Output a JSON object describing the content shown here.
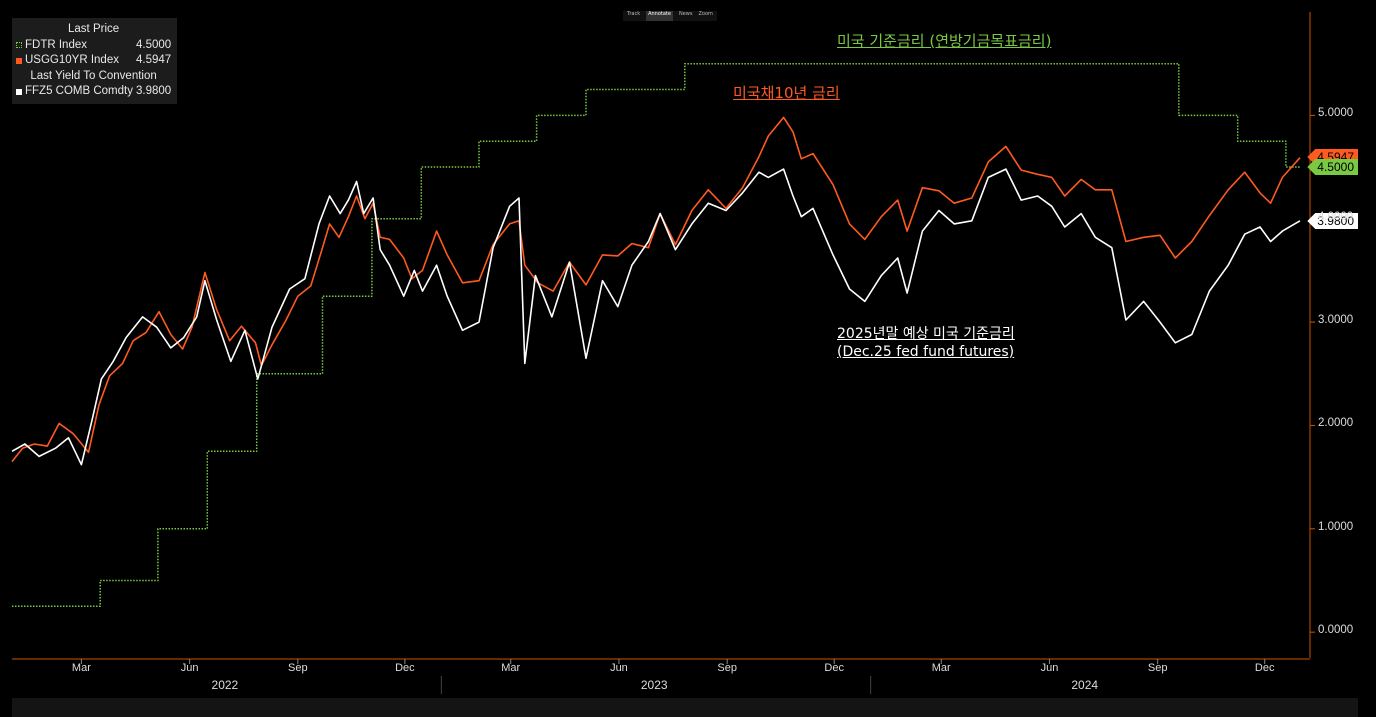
{
  "legend": {
    "header1": "Last Price",
    "items": [
      {
        "label": "FDTR Index",
        "value": "4.5000",
        "color": "#7ac943"
      },
      {
        "label": "USGG10YR Index",
        "value": "4.5947",
        "color": "#ff5a1f"
      }
    ],
    "header2": "Last Yield To Convention",
    "items2": [
      {
        "label": "FFZ5 COMB Comdty",
        "value": "3.9800",
        "color": "#ffffff"
      }
    ]
  },
  "toolbar": [
    "Track",
    "Annotate",
    "News",
    "Zoom"
  ],
  "annotations": {
    "fed_rate": "미국 기준금리 (연방기금목표금리)",
    "ust10": "미국채10년 금리",
    "ffz5_line1": "2025년말 예상 미국 기준금리",
    "ffz5_line2": "(Dec.25 fed fund futures)"
  },
  "last_labels": {
    "ust10": "4.5947",
    "fdtr": "4.5000",
    "ffz5": "3.9800"
  },
  "colors": {
    "fdtr": "#7ac943",
    "ust10": "#ff5a1f",
    "ffz5": "#ffffff",
    "axis": "#cc5500"
  },
  "chart_data": {
    "type": "line",
    "yticks": [
      "0.0000",
      "1.0000",
      "2.0000",
      "3.0000",
      "4.0000",
      "5.0000"
    ],
    "ylim": [
      -0.25,
      6.0
    ],
    "xlim": [
      "2022-01-01",
      "2024-12-31"
    ],
    "xticks": [
      {
        "label": "Mar",
        "date": "2022-03-01"
      },
      {
        "label": "Jun",
        "date": "2022-06-01"
      },
      {
        "label": "Sep",
        "date": "2022-09-01"
      },
      {
        "label": "Dec",
        "date": "2022-12-01"
      },
      {
        "label": "Mar",
        "date": "2023-03-01"
      },
      {
        "label": "Jun",
        "date": "2023-06-01"
      },
      {
        "label": "Sep",
        "date": "2023-09-01"
      },
      {
        "label": "Dec",
        "date": "2023-12-01"
      },
      {
        "label": "Mar",
        "date": "2024-03-01"
      },
      {
        "label": "Jun",
        "date": "2024-06-01"
      },
      {
        "label": "Sep",
        "date": "2024-09-01"
      },
      {
        "label": "Dec",
        "date": "2024-12-01"
      }
    ],
    "years": [
      {
        "label": "2022",
        "date": "2022-07-01"
      },
      {
        "label": "2023",
        "date": "2023-07-01"
      },
      {
        "label": "2024",
        "date": "2024-07-01"
      }
    ],
    "series": [
      {
        "name": "FDTR Index",
        "style": "step-dotted",
        "points": [
          [
            "2022-01-01",
            0.25
          ],
          [
            "2022-03-17",
            0.5
          ],
          [
            "2022-05-05",
            1.0
          ],
          [
            "2022-06-16",
            1.75
          ],
          [
            "2022-07-28",
            2.5
          ],
          [
            "2022-09-22",
            3.25
          ],
          [
            "2022-11-03",
            4.0
          ],
          [
            "2022-12-15",
            4.5
          ],
          [
            "2023-02-02",
            4.75
          ],
          [
            "2023-03-23",
            5.0
          ],
          [
            "2023-05-04",
            5.25
          ],
          [
            "2023-07-27",
            5.5
          ],
          [
            "2024-09-19",
            5.0
          ],
          [
            "2024-11-08",
            4.75
          ],
          [
            "2024-12-19",
            4.5
          ],
          [
            "2024-12-31",
            4.5
          ]
        ]
      },
      {
        "name": "USGG10YR Index",
        "points": [
          [
            "2022-01-01",
            1.65
          ],
          [
            "2022-01-10",
            1.78
          ],
          [
            "2022-01-20",
            1.82
          ],
          [
            "2022-01-31",
            1.8
          ],
          [
            "2022-02-10",
            2.02
          ],
          [
            "2022-02-22",
            1.92
          ],
          [
            "2022-03-07",
            1.74
          ],
          [
            "2022-03-16",
            2.2
          ],
          [
            "2022-03-25",
            2.48
          ],
          [
            "2022-04-05",
            2.6
          ],
          [
            "2022-04-14",
            2.82
          ],
          [
            "2022-04-25",
            2.9
          ],
          [
            "2022-05-06",
            3.1
          ],
          [
            "2022-05-16",
            2.88
          ],
          [
            "2022-05-26",
            2.74
          ],
          [
            "2022-06-03",
            2.95
          ],
          [
            "2022-06-14",
            3.48
          ],
          [
            "2022-06-24",
            3.12
          ],
          [
            "2022-07-05",
            2.82
          ],
          [
            "2022-07-15",
            2.96
          ],
          [
            "2022-07-27",
            2.8
          ],
          [
            "2022-08-01",
            2.58
          ],
          [
            "2022-08-10",
            2.78
          ],
          [
            "2022-08-22",
            3.02
          ],
          [
            "2022-09-01",
            3.25
          ],
          [
            "2022-09-12",
            3.35
          ],
          [
            "2022-09-22",
            3.72
          ],
          [
            "2022-09-28",
            3.95
          ],
          [
            "2022-10-06",
            3.82
          ],
          [
            "2022-10-14",
            4.02
          ],
          [
            "2022-10-21",
            4.22
          ],
          [
            "2022-10-28",
            4.0
          ],
          [
            "2022-11-04",
            4.15
          ],
          [
            "2022-11-10",
            3.82
          ],
          [
            "2022-11-18",
            3.8
          ],
          [
            "2022-11-30",
            3.62
          ],
          [
            "2022-12-07",
            3.42
          ],
          [
            "2022-12-16",
            3.5
          ],
          [
            "2022-12-28",
            3.88
          ],
          [
            "2023-01-06",
            3.65
          ],
          [
            "2023-01-19",
            3.38
          ],
          [
            "2023-02-02",
            3.4
          ],
          [
            "2023-02-14",
            3.75
          ],
          [
            "2023-02-28",
            3.95
          ],
          [
            "2023-03-08",
            3.98
          ],
          [
            "2023-03-13",
            3.55
          ],
          [
            "2023-03-24",
            3.38
          ],
          [
            "2023-04-06",
            3.3
          ],
          [
            "2023-04-20",
            3.58
          ],
          [
            "2023-05-04",
            3.36
          ],
          [
            "2023-05-18",
            3.65
          ],
          [
            "2023-05-31",
            3.64
          ],
          [
            "2023-06-12",
            3.76
          ],
          [
            "2023-06-26",
            3.72
          ],
          [
            "2023-07-06",
            4.05
          ],
          [
            "2023-07-19",
            3.75
          ],
          [
            "2023-08-02",
            4.08
          ],
          [
            "2023-08-16",
            4.28
          ],
          [
            "2023-08-31",
            4.1
          ],
          [
            "2023-09-14",
            4.3
          ],
          [
            "2023-09-28",
            4.6
          ],
          [
            "2023-10-06",
            4.8
          ],
          [
            "2023-10-19",
            4.98
          ],
          [
            "2023-10-27",
            4.84
          ],
          [
            "2023-11-03",
            4.58
          ],
          [
            "2023-11-13",
            4.63
          ],
          [
            "2023-11-30",
            4.33
          ],
          [
            "2023-12-14",
            3.95
          ],
          [
            "2023-12-27",
            3.8
          ],
          [
            "2024-01-10",
            4.02
          ],
          [
            "2024-01-24",
            4.18
          ],
          [
            "2024-02-01",
            3.88
          ],
          [
            "2024-02-14",
            4.3
          ],
          [
            "2024-02-28",
            4.27
          ],
          [
            "2024-03-12",
            4.15
          ],
          [
            "2024-03-27",
            4.2
          ],
          [
            "2024-04-10",
            4.55
          ],
          [
            "2024-04-25",
            4.7
          ],
          [
            "2024-05-08",
            4.47
          ],
          [
            "2024-05-22",
            4.43
          ],
          [
            "2024-06-03",
            4.4
          ],
          [
            "2024-06-14",
            4.22
          ],
          [
            "2024-06-28",
            4.38
          ],
          [
            "2024-07-10",
            4.28
          ],
          [
            "2024-07-24",
            4.28
          ],
          [
            "2024-08-05",
            3.78
          ],
          [
            "2024-08-20",
            3.82
          ],
          [
            "2024-09-03",
            3.84
          ],
          [
            "2024-09-16",
            3.62
          ],
          [
            "2024-09-30",
            3.78
          ],
          [
            "2024-10-15",
            4.03
          ],
          [
            "2024-10-31",
            4.28
          ],
          [
            "2024-11-14",
            4.45
          ],
          [
            "2024-11-27",
            4.25
          ],
          [
            "2024-12-06",
            4.15
          ],
          [
            "2024-12-16",
            4.4
          ],
          [
            "2024-12-31",
            4.59
          ]
        ]
      },
      {
        "name": "FFZ5 COMB Comdty",
        "points": [
          [
            "2022-01-01",
            1.75
          ],
          [
            "2022-01-12",
            1.82
          ],
          [
            "2022-01-24",
            1.7
          ],
          [
            "2022-02-07",
            1.78
          ],
          [
            "2022-02-18",
            1.88
          ],
          [
            "2022-03-01",
            1.62
          ],
          [
            "2022-03-10",
            2.05
          ],
          [
            "2022-03-18",
            2.45
          ],
          [
            "2022-03-28",
            2.62
          ],
          [
            "2022-04-08",
            2.85
          ],
          [
            "2022-04-22",
            3.05
          ],
          [
            "2022-05-04",
            2.95
          ],
          [
            "2022-05-16",
            2.75
          ],
          [
            "2022-05-27",
            2.85
          ],
          [
            "2022-06-07",
            3.05
          ],
          [
            "2022-06-14",
            3.4
          ],
          [
            "2022-06-24",
            3.02
          ],
          [
            "2022-07-06",
            2.62
          ],
          [
            "2022-07-18",
            2.92
          ],
          [
            "2022-07-29",
            2.45
          ],
          [
            "2022-08-10",
            2.95
          ],
          [
            "2022-08-25",
            3.32
          ],
          [
            "2022-09-07",
            3.42
          ],
          [
            "2022-09-19",
            3.95
          ],
          [
            "2022-09-28",
            4.22
          ],
          [
            "2022-10-07",
            4.05
          ],
          [
            "2022-10-14",
            4.18
          ],
          [
            "2022-10-21",
            4.36
          ],
          [
            "2022-10-27",
            4.05
          ],
          [
            "2022-11-04",
            4.2
          ],
          [
            "2022-11-10",
            3.7
          ],
          [
            "2022-11-18",
            3.55
          ],
          [
            "2022-11-30",
            3.25
          ],
          [
            "2022-12-09",
            3.5
          ],
          [
            "2022-12-16",
            3.3
          ],
          [
            "2022-12-28",
            3.55
          ],
          [
            "2023-01-06",
            3.25
          ],
          [
            "2023-01-19",
            2.92
          ],
          [
            "2023-02-02",
            3.0
          ],
          [
            "2023-02-14",
            3.72
          ],
          [
            "2023-02-28",
            4.12
          ],
          [
            "2023-03-08",
            4.2
          ],
          [
            "2023-03-13",
            2.6
          ],
          [
            "2023-03-22",
            3.45
          ],
          [
            "2023-04-05",
            3.05
          ],
          [
            "2023-04-20",
            3.58
          ],
          [
            "2023-05-04",
            2.65
          ],
          [
            "2023-05-18",
            3.4
          ],
          [
            "2023-05-31",
            3.15
          ],
          [
            "2023-06-12",
            3.55
          ],
          [
            "2023-06-26",
            3.78
          ],
          [
            "2023-07-06",
            4.05
          ],
          [
            "2023-07-19",
            3.7
          ],
          [
            "2023-08-02",
            3.95
          ],
          [
            "2023-08-16",
            4.15
          ],
          [
            "2023-08-31",
            4.08
          ],
          [
            "2023-09-14",
            4.25
          ],
          [
            "2023-09-28",
            4.45
          ],
          [
            "2023-10-06",
            4.4
          ],
          [
            "2023-10-19",
            4.48
          ],
          [
            "2023-10-27",
            4.22
          ],
          [
            "2023-11-03",
            4.02
          ],
          [
            "2023-11-13",
            4.1
          ],
          [
            "2023-11-30",
            3.65
          ],
          [
            "2023-12-14",
            3.32
          ],
          [
            "2023-12-27",
            3.2
          ],
          [
            "2024-01-10",
            3.45
          ],
          [
            "2024-01-24",
            3.62
          ],
          [
            "2024-02-01",
            3.28
          ],
          [
            "2024-02-14",
            3.88
          ],
          [
            "2024-02-28",
            4.08
          ],
          [
            "2024-03-12",
            3.95
          ],
          [
            "2024-03-27",
            3.98
          ],
          [
            "2024-04-10",
            4.4
          ],
          [
            "2024-04-25",
            4.48
          ],
          [
            "2024-05-08",
            4.18
          ],
          [
            "2024-05-22",
            4.22
          ],
          [
            "2024-06-03",
            4.12
          ],
          [
            "2024-06-14",
            3.92
          ],
          [
            "2024-06-28",
            4.05
          ],
          [
            "2024-07-10",
            3.82
          ],
          [
            "2024-07-24",
            3.72
          ],
          [
            "2024-08-05",
            3.02
          ],
          [
            "2024-08-20",
            3.2
          ],
          [
            "2024-09-03",
            3.0
          ],
          [
            "2024-09-16",
            2.8
          ],
          [
            "2024-09-30",
            2.88
          ],
          [
            "2024-10-15",
            3.3
          ],
          [
            "2024-10-31",
            3.55
          ],
          [
            "2024-11-14",
            3.85
          ],
          [
            "2024-11-27",
            3.92
          ],
          [
            "2024-12-06",
            3.78
          ],
          [
            "2024-12-16",
            3.88
          ],
          [
            "2024-12-31",
            3.98
          ]
        ]
      }
    ]
  }
}
